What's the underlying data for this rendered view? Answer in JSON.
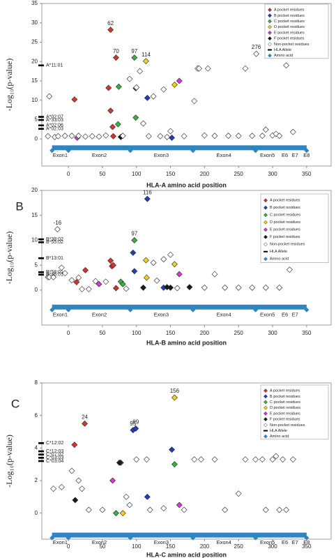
{
  "chart_data": [
    {
      "type": "scatter",
      "panel_label": "A",
      "x_label": "HLA-A amino acid position",
      "y_label": "-Log₁₀(p-value)",
      "xlim": [
        -39,
        386
      ],
      "ylim": [
        -7,
        35
      ],
      "xticks": [
        0,
        50,
        100,
        150,
        200,
        250,
        300,
        350
      ],
      "yticks": [
        0,
        5,
        10,
        15,
        20,
        25,
        30,
        35
      ],
      "grid": false,
      "legend": "upper right",
      "series": [
        {
          "name": "A pocket residues",
          "color": "#d9342b",
          "marker": "diamond",
          "x": [
            9,
            59,
            62,
            62,
            65,
            66,
            70
          ],
          "values": [
            10.2,
            13.2,
            28.2,
            7.3,
            3.1,
            0.7,
            21
          ]
        },
        {
          "name": "B pocket residues",
          "color": "#1f3fbf",
          "marker": "diamond",
          "x": [
            99,
            116,
            152
          ],
          "values": [
            13.1,
            10.6,
            0.3
          ]
        },
        {
          "name": "C pocket residues",
          "color": "#3cb043",
          "marker": "diamond",
          "x": [
            74,
            97,
            99,
            73
          ],
          "values": [
            13.5,
            21,
            5.5,
            3.8
          ]
        },
        {
          "name": "D pocket residues",
          "color": "#f2d21b",
          "marker": "diamond",
          "x": [
            114,
            156
          ],
          "values": [
            20.1,
            14
          ]
        },
        {
          "name": "E pocket residues",
          "color": "#d23bd6",
          "marker": "diamond",
          "x": [
            163,
            13
          ],
          "values": [
            15,
            0.3
          ]
        },
        {
          "name": "F pocket residues",
          "color": "#1a1a1a",
          "marker": "diamond",
          "x": [
            77
          ],
          "values": [
            0.5
          ]
        },
        {
          "name": "Non-pocket residues",
          "color": "#ffffff",
          "marker": "hollow",
          "x": [
            -28,
            -30,
            -20,
            -15,
            -5,
            5,
            15,
            25,
            35,
            45,
            55,
            80,
            90,
            100,
            105,
            110,
            118,
            125,
            135,
            140,
            145,
            150,
            170,
            185,
            190,
            192,
            200,
            205,
            215,
            235,
            250,
            260,
            270,
            276,
            285,
            290,
            300,
            305,
            310,
            320,
            330
          ],
          "values": [
            11,
            0.7,
            0.5,
            0.7,
            0.8,
            0.8,
            0.8,
            0.6,
            0.7,
            0.6,
            0.9,
            0.8,
            15.5,
            13.3,
            17.5,
            4,
            0.7,
            11,
            0.7,
            12.8,
            0.5,
            2,
            0.7,
            9.8,
            18.2,
            18.2,
            0.9,
            18.2,
            0.8,
            0.8,
            0.8,
            18.2,
            0.8,
            22,
            0.8,
            2.4,
            0.9,
            1.3,
            0.8,
            19,
            1.8
          ]
        },
        {
          "name": "HLA Allele",
          "color": "#000000",
          "marker": "bar",
          "x": [
            -40,
            -40,
            -40,
            -40,
            -40
          ],
          "values": [
            19,
            5.7,
            4.9,
            3.5,
            2.6
          ],
          "point_labels": [
            "A*11:01",
            "A*02:07",
            "A*33:03",
            "A*02:06",
            "A*02:03"
          ]
        },
        {
          "name": "Amino acid",
          "color": "#2e86c1",
          "marker": "band",
          "x": [
            -24,
            0,
            91,
            183,
            275,
            350
          ],
          "values": [
            -2.3,
            -2.3,
            -2.3,
            -2.3,
            -2.3,
            -2.3
          ]
        }
      ],
      "annotations": [
        {
          "text": "62",
          "x": 62,
          "y": 28.2
        },
        {
          "text": "70",
          "x": 70,
          "y": 21
        },
        {
          "text": "97",
          "x": 97,
          "y": 21
        },
        {
          "text": "114",
          "x": 114,
          "y": 20.1
        },
        {
          "text": "276",
          "x": 276,
          "y": 22
        }
      ],
      "exons": [
        {
          "label": "Exon1",
          "start": -24,
          "end": 0
        },
        {
          "label": "Exon2",
          "start": 1,
          "end": 90
        },
        {
          "label": "Exon3",
          "start": 91,
          "end": 182
        },
        {
          "label": "Exon4",
          "start": 183,
          "end": 274
        },
        {
          "label": "Exon5",
          "start": 275,
          "end": 310
        },
        {
          "label": "E6",
          "start": 312,
          "end": 324
        },
        {
          "label": "E7",
          "start": 327,
          "end": 339
        },
        {
          "label": "E8",
          "start": 342,
          "end": 358
        }
      ]
    },
    {
      "type": "scatter",
      "panel_label": "B",
      "x_label": "HLA-B amino acid position",
      "y_label": "-Log₁₀(p-value)",
      "xlim": [
        -39,
        386
      ],
      "ylim": [
        -7,
        20
      ],
      "xticks": [
        0,
        50,
        100,
        150,
        200,
        250,
        300,
        350
      ],
      "yticks": [
        0,
        5,
        10,
        15,
        20
      ],
      "grid": false,
      "legend": "upper right",
      "series": [
        {
          "name": "A pocket residues",
          "color": "#d9342b",
          "marker": "diamond",
          "x": [
            25,
            62,
            64,
            66,
            12,
            70
          ],
          "values": [
            4,
            5.9,
            4.8,
            5,
            1.6,
            0.4
          ]
        },
        {
          "name": "B pocket residues",
          "color": "#1f3fbf",
          "marker": "diamond",
          "x": [
            95,
            116,
            97,
            140
          ],
          "values": [
            7.5,
            18.3,
            3.8,
            0.5
          ]
        },
        {
          "name": "C pocket residues",
          "color": "#3cb043",
          "marker": "diamond",
          "x": [
            97,
            77,
            80
          ],
          "values": [
            10,
            1.7,
            1.2
          ]
        },
        {
          "name": "D pocket residues",
          "color": "#f2d21b",
          "marker": "diamond",
          "x": [
            114,
            156,
            115
          ],
          "values": [
            6,
            5.2,
            2.5
          ]
        },
        {
          "name": "E pocket residues",
          "color": "#d23bd6",
          "marker": "diamond",
          "x": [
            163,
            45
          ],
          "values": [
            3.2,
            1.2
          ]
        },
        {
          "name": "F pocket residues",
          "color": "#1a1a1a",
          "marker": "diamond",
          "x": [
            110,
            145,
            150,
            178
          ],
          "values": [
            0.5,
            0.6,
            0.5,
            0.6
          ]
        },
        {
          "name": "Non-pocket residues",
          "color": "#ffffff",
          "marker": "hollow",
          "x": [
            -16,
            -30,
            -28,
            -22,
            -10,
            -5,
            5,
            15,
            20,
            30,
            40,
            55,
            85,
            125,
            130,
            140,
            150,
            160,
            200,
            215,
            230,
            250,
            270,
            290,
            310,
            325
          ],
          "values": [
            12.2,
            2.6,
            2.6,
            2.6,
            4.5,
            3.4,
            2,
            2.5,
            0.2,
            0.2,
            1.8,
            1.7,
            0.3,
            5.5,
            1.9,
            6.2,
            7.1,
            0.4,
            0.5,
            3.2,
            0.5,
            0.5,
            0.5,
            0.5,
            0.5,
            4.1
          ]
        },
        {
          "name": "HLA Allele",
          "color": "#000000",
          "marker": "bar",
          "x": [
            -40,
            -40,
            -40,
            -40,
            -40
          ],
          "values": [
            10.2,
            9.6,
            6.4,
            3.6,
            3.1
          ],
          "point_labels": [
            "B*38:02",
            "B*55:02",
            "B*13:01",
            "B*58:01",
            "B*46:01"
          ]
        },
        {
          "name": "Amino acid",
          "color": "#2e86c1",
          "marker": "band",
          "x": [
            -24,
            0,
            91,
            183,
            275,
            350
          ],
          "values": [
            -3.4,
            -3.4,
            -3.4,
            -3.4,
            -3.4,
            -3.4
          ]
        }
      ],
      "annotations": [
        {
          "text": "116",
          "x": 116,
          "y": 18.3
        },
        {
          "text": "-16",
          "x": -16,
          "y": 12.2
        },
        {
          "text": "97",
          "x": 97,
          "y": 10
        }
      ],
      "exons": [
        {
          "label": "Exon1",
          "start": -24,
          "end": 0
        },
        {
          "label": "Exon2",
          "start": 1,
          "end": 90
        },
        {
          "label": "Exon3",
          "start": 91,
          "end": 182
        },
        {
          "label": "Exon4",
          "start": 183,
          "end": 274
        },
        {
          "label": "Exon5",
          "start": 275,
          "end": 310
        },
        {
          "label": "E6",
          "start": 312,
          "end": 324
        },
        {
          "label": "E7",
          "start": 327,
          "end": 339
        }
      ]
    },
    {
      "type": "scatter",
      "panel_label": "C",
      "x_label": "HLA-C amino acid position",
      "y_label": "-Log₁₀(p-value)",
      "xlim": [
        -39,
        386
      ],
      "ylim": [
        -1.6,
        8
      ],
      "xticks": [
        0,
        50,
        100,
        150,
        200,
        250,
        300,
        350
      ],
      "yticks": [
        0,
        2,
        4,
        6,
        8
      ],
      "grid": false,
      "legend": "upper right",
      "series": [
        {
          "name": "A pocket residues",
          "color": "#d9342b",
          "marker": "diamond",
          "x": [
            9,
            24
          ],
          "values": [
            4.2,
            5.5
          ]
        },
        {
          "name": "B pocket residues",
          "color": "#1f3fbf",
          "marker": "diamond",
          "x": [
            95,
            99,
            152,
            77,
            116
          ],
          "values": [
            5.1,
            5.2,
            3.9,
            3.1,
            1
          ]
        },
        {
          "name": "C pocket residues",
          "color": "#3cb043",
          "marker": "diamond",
          "x": [
            156,
            70
          ],
          "values": [
            3,
            0
          ]
        },
        {
          "name": "D pocket residues",
          "color": "#f2d21b",
          "marker": "diamond",
          "x": [
            156,
            80
          ],
          "values": [
            7.1,
            0
          ]
        },
        {
          "name": "E pocket residues",
          "color": "#d23bd6",
          "marker": "diamond",
          "x": [
            65,
            163
          ],
          "values": [
            2,
            0.5
          ]
        },
        {
          "name": "F pocket residues",
          "color": "#1a1a1a",
          "marker": "diamond",
          "x": [
            10,
            75
          ],
          "values": [
            0.8,
            3.1
          ]
        },
        {
          "name": "Non-pocket residues",
          "color": "#ffffff",
          "marker": "hollow",
          "x": [
            -22,
            -10,
            5,
            15,
            20,
            30,
            50,
            85,
            90,
            100,
            115,
            120,
            140,
            170,
            185,
            195,
            215,
            230,
            250,
            260,
            275,
            285,
            290,
            300,
            305,
            310,
            315,
            320,
            330
          ],
          "values": [
            1.5,
            1.6,
            2.6,
            2,
            1.5,
            0.2,
            0.2,
            1,
            0.5,
            3.3,
            3.3,
            0.2,
            0.3,
            0.2,
            3.3,
            3.3,
            3.3,
            0.2,
            1.2,
            3.3,
            3.3,
            3.3,
            0.2,
            3.3,
            3.5,
            0.2,
            3.3,
            0.2,
            3.3
          ]
        },
        {
          "name": "HLA Allele",
          "color": "#000000",
          "marker": "bar",
          "x": [
            -40,
            -40,
            -40,
            -40,
            -40
          ],
          "values": [
            4.3,
            3.8,
            3.6,
            3.4,
            3.2
          ],
          "point_labels": [
            "C*12:02",
            "C*12:03",
            "C*07:02",
            "C*03:03",
            "C*03:04"
          ]
        },
        {
          "name": "Amino acid",
          "color": "#2e86c1",
          "marker": "band",
          "x": [
            -24,
            0,
            91,
            183,
            275,
            350
          ],
          "values": [
            -1.35,
            -1.35,
            -1.35,
            -1.35,
            -1.35,
            -1.35
          ]
        }
      ],
      "annotations": [
        {
          "text": "24",
          "x": 24,
          "y": 5.5
        },
        {
          "text": "95",
          "x": 95,
          "y": 5.1
        },
        {
          "text": "99",
          "x": 99,
          "y": 5.2
        },
        {
          "text": "156",
          "x": 156,
          "y": 7.1
        }
      ],
      "exons": [
        {
          "label": "Exon1",
          "start": -24,
          "end": 0
        },
        {
          "label": "Exon2",
          "start": 1,
          "end": 90
        },
        {
          "label": "Exon3",
          "start": 91,
          "end": 182
        },
        {
          "label": "Exon4",
          "start": 183,
          "end": 274
        },
        {
          "label": "Exon5",
          "start": 275,
          "end": 310
        },
        {
          "label": "E6",
          "start": 312,
          "end": 324
        },
        {
          "label": "E7",
          "start": 327,
          "end": 339
        },
        {
          "label": "E8",
          "start": 342,
          "end": 358
        }
      ]
    }
  ]
}
